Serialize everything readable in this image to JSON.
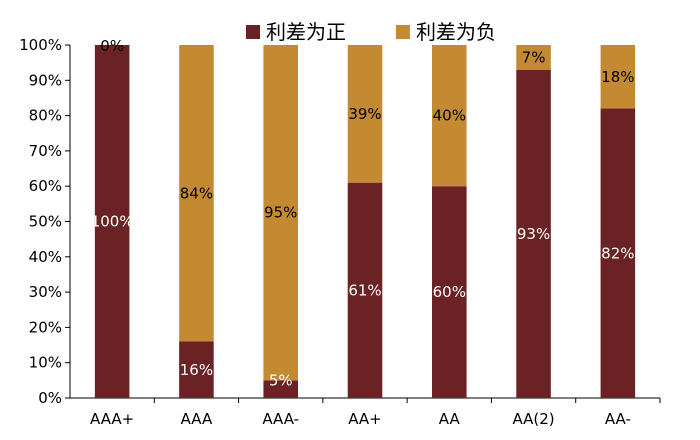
{
  "chart_data": {
    "type": "bar",
    "stacked": true,
    "percent_stacked": true,
    "categories": [
      "AAA+",
      "AAA",
      "AAA-",
      "AA+",
      "AA",
      "AA(2)",
      "AA-"
    ],
    "series": [
      {
        "name": "利差为正",
        "values": [
          100,
          16,
          5,
          61,
          60,
          93,
          82
        ],
        "labels": [
          "100%",
          "16%",
          "5%",
          "61%",
          "60%",
          "93%",
          "82%"
        ],
        "color": "#6b2224",
        "label_color": "#ffffff"
      },
      {
        "name": "利差为负",
        "values": [
          0,
          84,
          95,
          39,
          40,
          7,
          18
        ],
        "labels": [
          "0%",
          "84%",
          "95%",
          "39%",
          "40%",
          "7%",
          "18%"
        ],
        "color": "#c48a32",
        "label_color": "#000000"
      }
    ],
    "y_ticks": [
      "0%",
      "10%",
      "20%",
      "30%",
      "40%",
      "50%",
      "60%",
      "70%",
      "80%",
      "90%",
      "100%"
    ],
    "ylim": [
      0,
      100
    ],
    "grid": false,
    "legend_position": "top"
  }
}
